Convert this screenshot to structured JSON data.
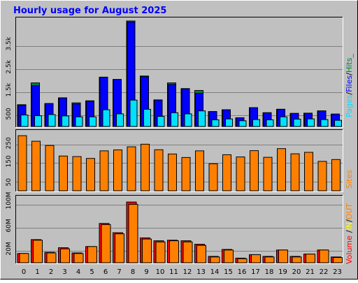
{
  "title": "Hourly usage for August 2025",
  "colors": {
    "background": "#c0c0c0",
    "plot_background": "#c0c0c0",
    "title": "#0000ff",
    "hits": "#008040",
    "files": "#0000ff",
    "pages": "#00e0ff",
    "sites": "#ff8000",
    "volume": "#ff0000",
    "in": "#ffff00",
    "out": "#ff8000"
  },
  "legend": {
    "pages": "Pages",
    "files": "Files",
    "hits": "Hits",
    "sites": "Sites",
    "volume": "Volume",
    "in": "IN",
    "out": "OUT",
    "sep": "/",
    "end": "_"
  },
  "chart_data": [
    {
      "type": "bar",
      "name": "hits-files-pages",
      "categories": [
        "0",
        "1",
        "2",
        "3",
        "4",
        "5",
        "6",
        "7",
        "8",
        "9",
        "10",
        "11",
        "12",
        "13",
        "14",
        "15",
        "16",
        "17",
        "18",
        "19",
        "20",
        "21",
        "22",
        "23"
      ],
      "y_tick_labels": [
        "500",
        "1.5k",
        "2.5k",
        "3.5k"
      ],
      "y_tick_values": [
        500,
        1500,
        2500,
        3500
      ],
      "ylim": [
        0,
        4600
      ],
      "series": [
        {
          "name": "Hits",
          "values": [
            950,
            1900,
            1000,
            1250,
            1030,
            1120,
            2150,
            2050,
            4600,
            2200,
            1160,
            1900,
            1650,
            1570,
            650,
            730,
            380,
            820,
            600,
            750,
            570,
            580,
            680,
            540
          ]
        },
        {
          "name": "Files",
          "values": [
            920,
            1780,
            1000,
            1240,
            980,
            1100,
            2150,
            2050,
            4550,
            2170,
            1150,
            1830,
            1650,
            1450,
            650,
            730,
            380,
            820,
            600,
            750,
            570,
            580,
            680,
            540
          ]
        },
        {
          "name": "Pages",
          "values": [
            500,
            470,
            520,
            460,
            420,
            420,
            730,
            550,
            1150,
            750,
            440,
            600,
            550,
            680,
            290,
            330,
            250,
            300,
            290,
            420,
            320,
            330,
            300,
            270
          ]
        }
      ]
    },
    {
      "type": "bar",
      "name": "sites",
      "categories": [
        "0",
        "1",
        "2",
        "3",
        "4",
        "5",
        "6",
        "7",
        "8",
        "9",
        "10",
        "11",
        "12",
        "13",
        "14",
        "15",
        "16",
        "17",
        "18",
        "19",
        "20",
        "21",
        "22",
        "23"
      ],
      "y_tick_labels": [
        "50",
        "150",
        "250"
      ],
      "y_tick_values": [
        50,
        150,
        250
      ],
      "ylim": [
        0,
        310
      ],
      "series": [
        {
          "name": "Sites",
          "values": [
            298,
            268,
            245,
            188,
            185,
            175,
            216,
            221,
            238,
            252,
            222,
            199,
            180,
            216,
            146,
            195,
            183,
            217,
            181,
            228,
            200,
            208,
            159,
            169
          ]
        }
      ]
    },
    {
      "type": "bar",
      "name": "volume",
      "categories": [
        "0",
        "1",
        "2",
        "3",
        "4",
        "5",
        "6",
        "7",
        "8",
        "9",
        "10",
        "11",
        "12",
        "13",
        "14",
        "15",
        "16",
        "17",
        "18",
        "19",
        "20",
        "21",
        "22",
        "23"
      ],
      "y_tick_labels": [
        "20M",
        "60M",
        "100M"
      ],
      "y_tick_values": [
        20,
        60,
        100
      ],
      "ylim": [
        0,
        110
      ],
      "series": [
        {
          "name": "IN",
          "values": [
            16,
            40,
            18,
            26,
            17,
            28,
            68,
            52,
            105,
            43,
            38,
            39,
            38,
            32,
            11,
            23,
            8,
            14,
            11,
            22,
            11,
            15,
            22,
            10
          ]
        },
        {
          "name": "OUT",
          "values": [
            16,
            39,
            17,
            24,
            16,
            28,
            66,
            50,
            101,
            41,
            36,
            38,
            36,
            30,
            10,
            22,
            7,
            14,
            10,
            22,
            10,
            15,
            22,
            9
          ]
        }
      ]
    }
  ]
}
